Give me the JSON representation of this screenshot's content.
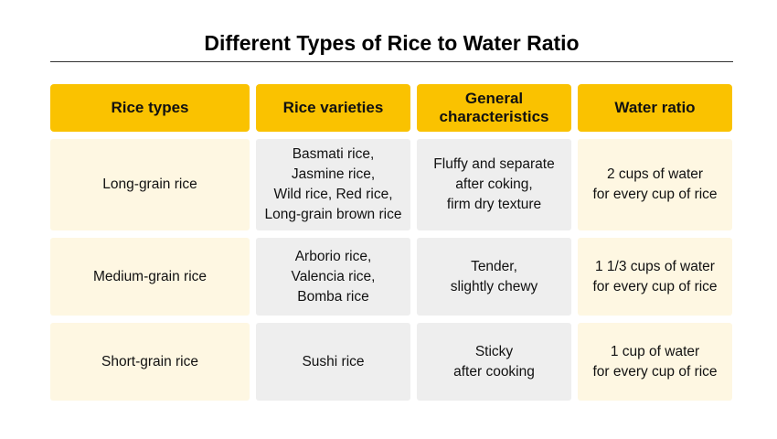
{
  "title": "Different Types of Rice to Water Ratio",
  "headers": [
    "Rice types",
    "Rice varieties",
    "General\ncharacteristics",
    "Water ratio"
  ],
  "rows": [
    {
      "type": "Long-grain rice",
      "varieties": "Basmati rice,\nJasmine rice,\nWild rice, Red rice,\nLong-grain brown rice",
      "characteristics": "Fluffy and separate\nafter coking,\nfirm dry texture",
      "water": "2 cups of water\nfor every cup of rice"
    },
    {
      "type": "Medium-grain rice",
      "varieties": "Arborio rice,\nValencia rice,\nBomba rice",
      "characteristics": "Tender,\nslightly chewy",
      "water": "1 1/3 cups of water\nfor every cup of rice"
    },
    {
      "type": "Short-grain rice",
      "varieties": "Sushi rice",
      "characteristics": "Sticky\nafter cooking",
      "water": "1 cup of water\nfor every cup of rice"
    }
  ],
  "colors": {
    "header": "#fac200",
    "cream": "#fef7e2",
    "gray": "#eeeeee"
  }
}
